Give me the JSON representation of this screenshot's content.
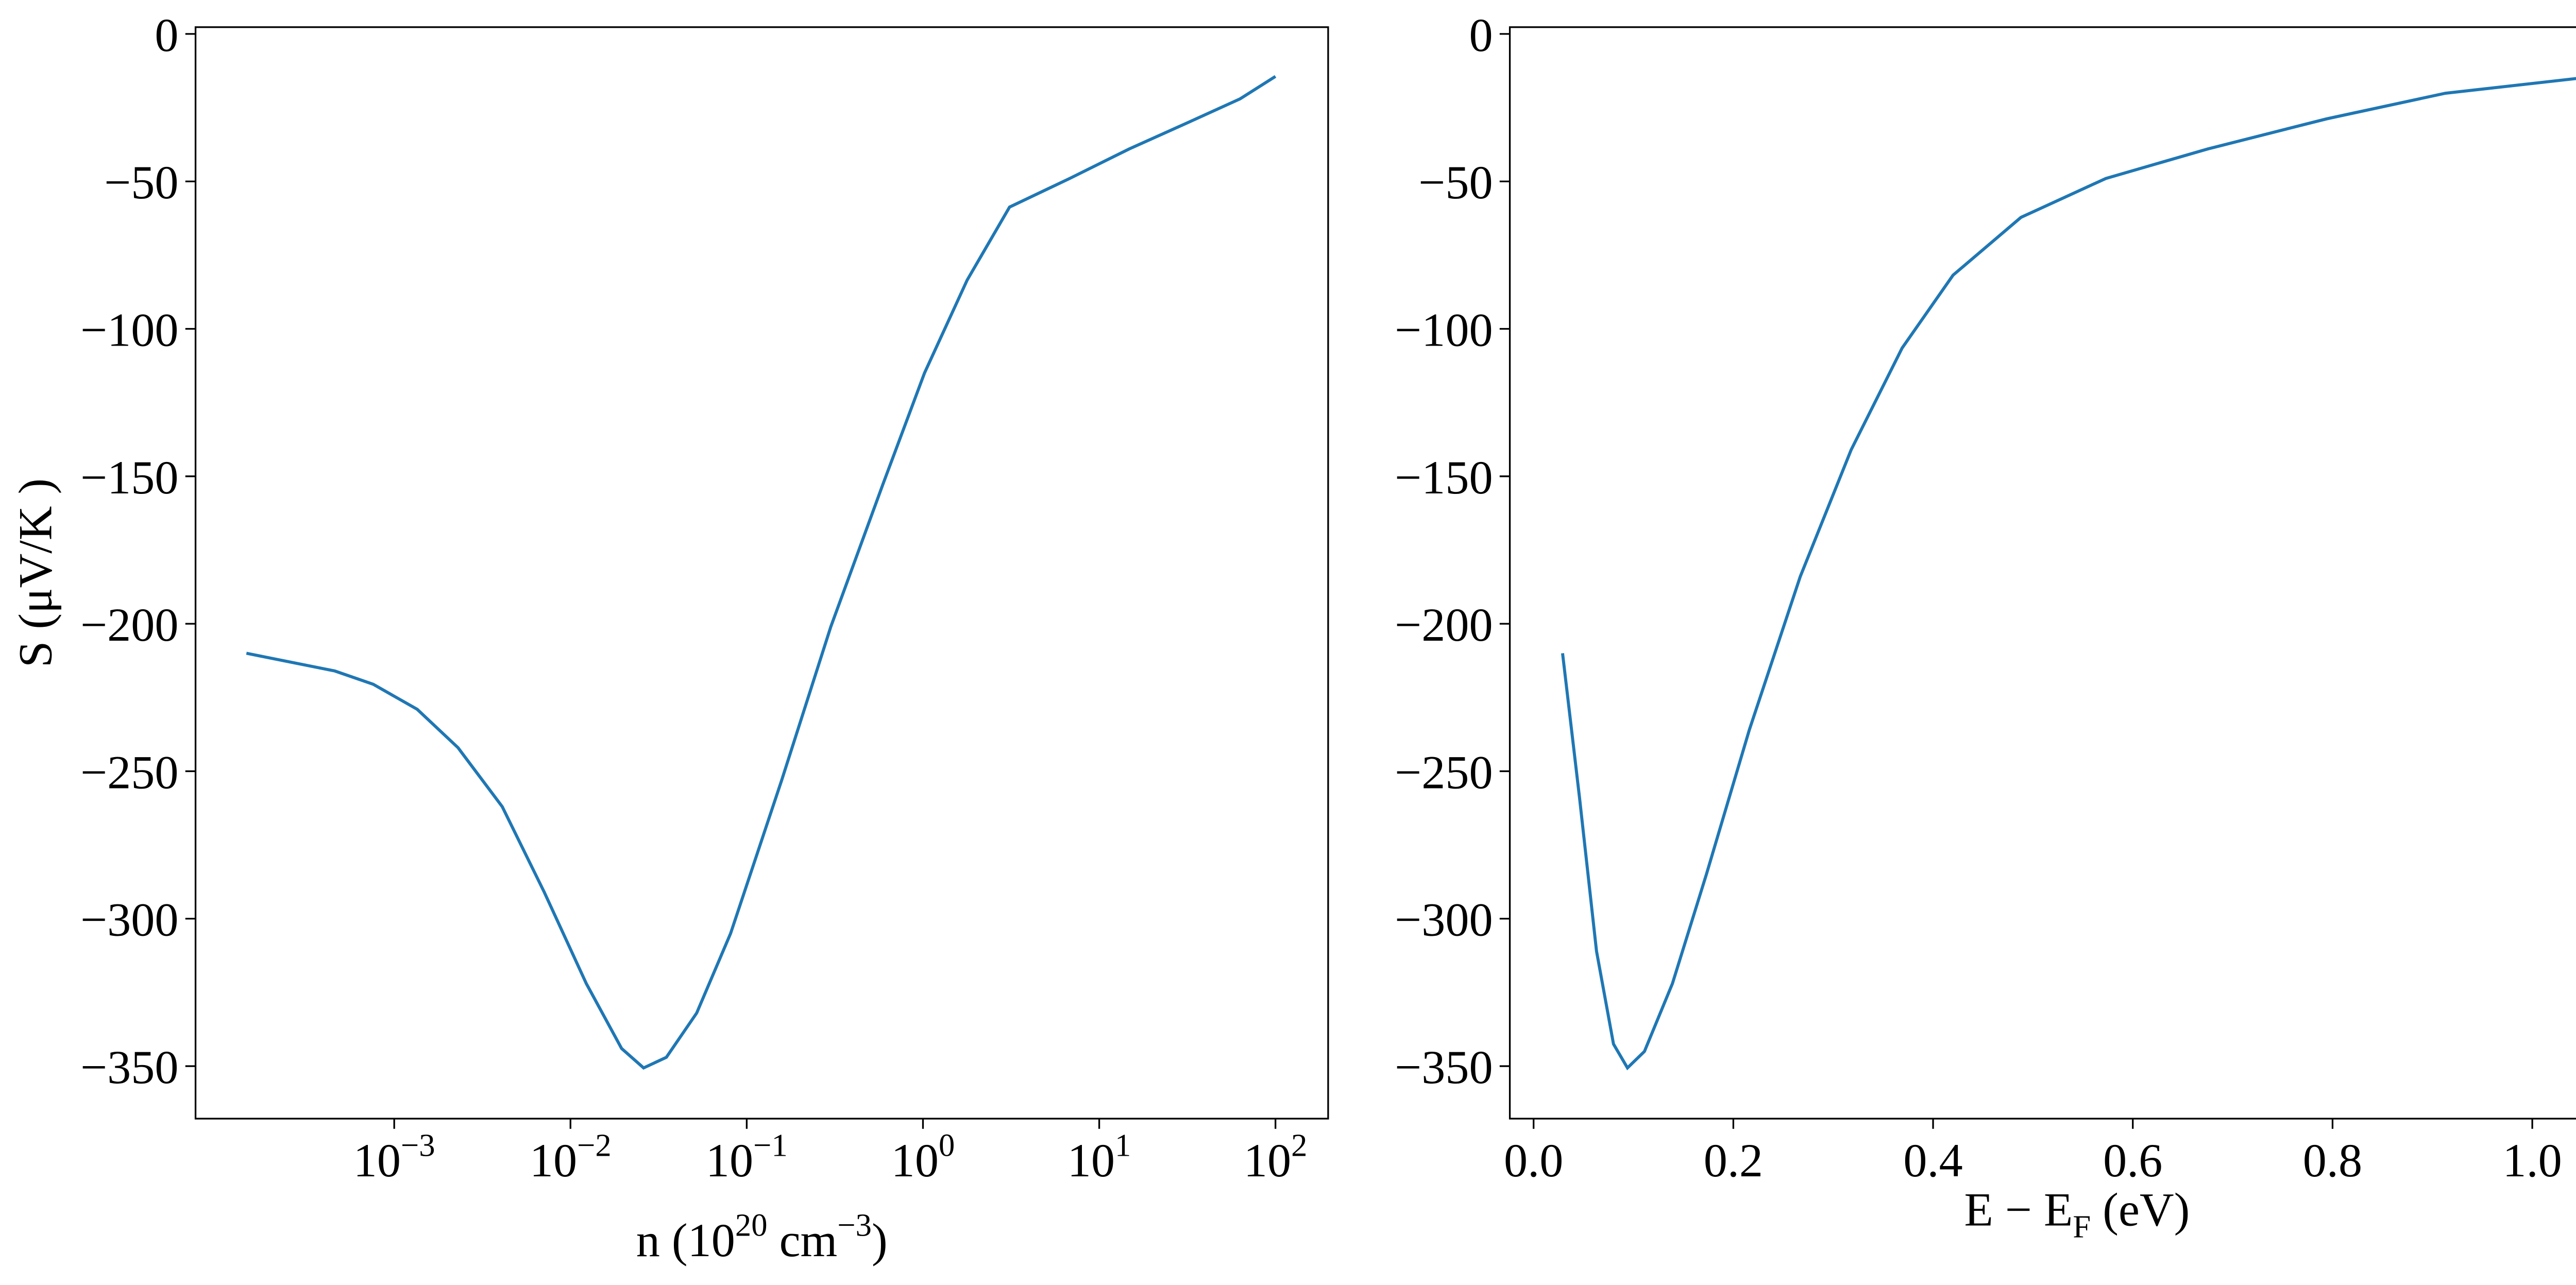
{
  "chart_data": [
    {
      "type": "line",
      "xscale": "log",
      "color": "#1f77b4",
      "ylabel": "S (μV/K )",
      "xlabel": [
        "n (10",
        "20",
        " cm",
        "−3",
        ")"
      ],
      "xlabel_style": [
        "normal",
        "super",
        "normal",
        "super",
        "normal"
      ],
      "xlim": [
        7.46e-05,
        199
      ],
      "ylim": [
        -367.8,
        2.3
      ],
      "xticks": [
        {
          "value": 0.001,
          "label": {
            "base": "10",
            "exponent": "−3"
          }
        },
        {
          "value": 0.01,
          "label": {
            "base": "10",
            "exponent": "−2"
          }
        },
        {
          "value": 0.1,
          "label": {
            "base": "10",
            "exponent": "−1"
          }
        },
        {
          "value": 1,
          "label": {
            "base": "10",
            "exponent": "0"
          }
        },
        {
          "value": 10,
          "label": {
            "base": "10",
            "exponent": "1"
          }
        },
        {
          "value": 100,
          "label": {
            "base": "10",
            "exponent": "2"
          }
        }
      ],
      "yticks": [
        0,
        {
          "value": -50,
          "label": "−50"
        },
        {
          "value": -100,
          "label": "−100"
        },
        {
          "value": -150,
          "label": "−150"
        },
        {
          "value": -200,
          "label": "−200"
        },
        {
          "value": -250,
          "label": "−250"
        },
        {
          "value": -300,
          "label": "−300"
        },
        {
          "value": -350,
          "label": "−350"
        }
      ],
      "x": [
        0.000145,
        0.00046,
        0.00076,
        0.00135,
        0.0023,
        0.0041,
        0.0071,
        0.0123,
        0.0195,
        0.026,
        0.035,
        0.052,
        0.081,
        0.158,
        0.3,
        0.59,
        1.02,
        1.78,
        3.1,
        6.8,
        14.8,
        32,
        63,
        100
      ],
      "values": [
        -210,
        -216,
        -220.5,
        -229,
        -242,
        -262,
        -291,
        -322,
        -344,
        -350.6,
        -347,
        -332,
        -305,
        -253,
        -201,
        -153,
        -115,
        -83.5,
        -58.7,
        -49,
        -39,
        -30,
        -22,
        -14.4
      ]
    },
    {
      "type": "line",
      "xscale": "linear",
      "color": "#1f77b4",
      "xlabel": [
        "E − E",
        "F",
        " (eV)"
      ],
      "xlabel_style": [
        "normal",
        "sub",
        "normal"
      ],
      "xlim": [
        -0.0238,
        1.112
      ],
      "ylim": [
        -367.8,
        2.3
      ],
      "xticks": [
        {
          "value": 0,
          "label": "0.0"
        },
        0.2,
        0.4,
        0.6,
        0.8,
        {
          "value": 1,
          "label": "1.0"
        }
      ],
      "yticks": [
        0,
        {
          "value": -50,
          "label": "−50"
        },
        {
          "value": -100,
          "label": "−100"
        },
        {
          "value": -150,
          "label": "−150"
        },
        {
          "value": -200,
          "label": "−200"
        },
        {
          "value": -250,
          "label": "−250"
        },
        {
          "value": -300,
          "label": "−300"
        },
        {
          "value": -350,
          "label": "−350"
        }
      ],
      "x": [
        0.029,
        0.046,
        0.063,
        0.08,
        0.094,
        0.111,
        0.139,
        0.173,
        0.216,
        0.267,
        0.318,
        0.369,
        0.42,
        0.488,
        0.573,
        0.675,
        0.794,
        0.913,
        1.063
      ],
      "values": [
        -210,
        -259,
        -311,
        -342.5,
        -350.6,
        -345,
        -322,
        -285,
        -236,
        -184,
        -141,
        -106.5,
        -81.8,
        -62.2,
        -49,
        -39,
        -28.8,
        -20.1,
        -14.4
      ]
    }
  ]
}
